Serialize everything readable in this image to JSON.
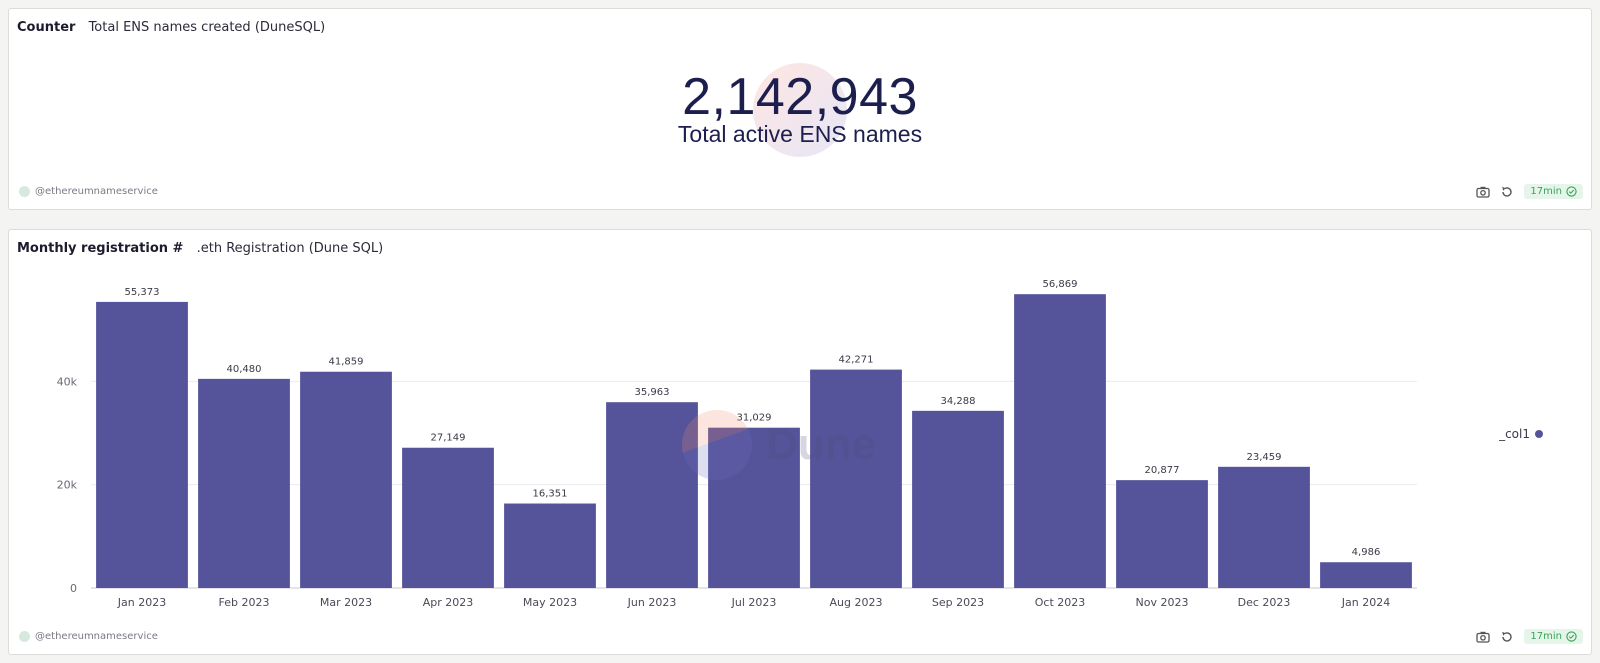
{
  "counter_card": {
    "type_label": "Counter",
    "query_name": "Total ENS names created (DuneSQL)",
    "value": "2,142,943",
    "label": "Total active ENS names",
    "owner": "@ethereumnameservice",
    "freshness": "17min"
  },
  "chart_card": {
    "type_label": "Monthly registration #",
    "query_name": ".eth Registration (Dune SQL)",
    "owner": "@ethereumnameservice",
    "freshness": "17min",
    "watermark": "Dune"
  },
  "icons": {
    "screenshot": "camera-icon",
    "refresh": "refresh-icon",
    "fresh": "check-circle-icon",
    "owner": "avatar"
  },
  "colors": {
    "bar": "#55549a",
    "fresh_bg": "#e6f5ea",
    "fresh_text": "#3aa35a"
  },
  "chart_data": {
    "type": "bar",
    "categories": [
      "Jan 2023",
      "Feb 2023",
      "Mar 2023",
      "Apr 2023",
      "May 2023",
      "Jun 2023",
      "Jul 2023",
      "Aug 2023",
      "Sep 2023",
      "Oct 2023",
      "Nov 2023",
      "Dec 2023",
      "Jan 2024"
    ],
    "series": [
      {
        "name": "_col1",
        "values": [
          55373,
          40480,
          41859,
          27149,
          16351,
          35963,
          31029,
          42271,
          34288,
          56869,
          20877,
          23459,
          4986
        ],
        "value_labels": [
          "55,373",
          "40,480",
          "41,859",
          "27,149",
          "16,351",
          "35,963",
          "31,029",
          "42,271",
          "34,288",
          "56,869",
          "20,877",
          "23,459",
          "4,986"
        ]
      }
    ],
    "yticks": [
      0,
      20000,
      40000
    ],
    "ytick_labels": [
      "0",
      "20k",
      "40k"
    ],
    "ylim": [
      0,
      60000
    ],
    "grid": true,
    "legend": "right"
  }
}
